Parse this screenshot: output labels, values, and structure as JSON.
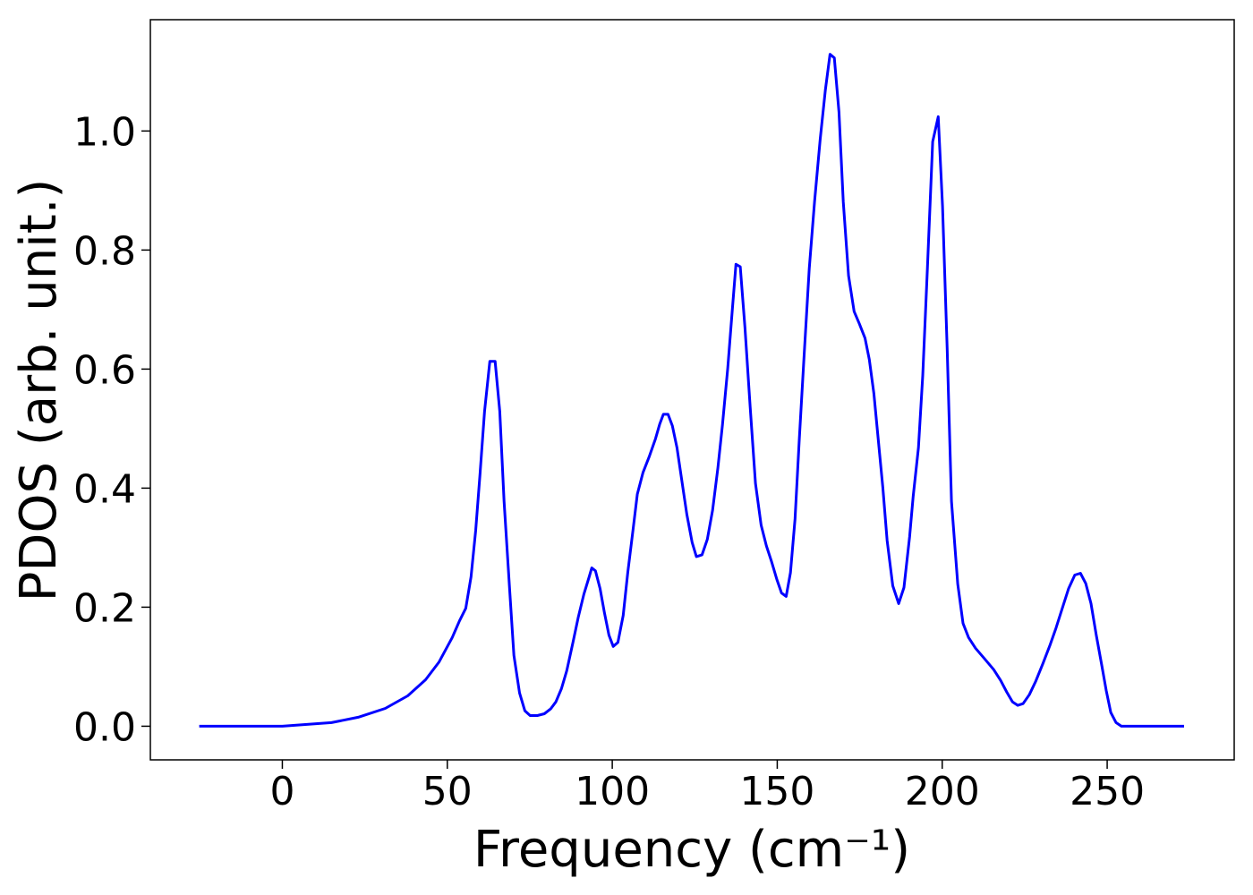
{
  "chart_data": {
    "type": "line",
    "xlabel": "Frequency (cm⁻¹)",
    "ylabel": "PDOS (arb. unit.)",
    "xlim": [
      -40,
      288.5
    ],
    "ylim": [
      -0.0565,
      1.187
    ],
    "xticks": [
      0,
      50,
      100,
      150,
      200,
      250
    ],
    "yticks": [
      {
        "value": 0,
        "label": "0.0"
      },
      0.2,
      0.4,
      0.6,
      0.8,
      {
        "value": 1,
        "label": "1.0"
      }
    ],
    "grid": false,
    "series": [
      {
        "color": "#0000ff",
        "x": [
          -25.2,
          0,
          14.9,
          23,
          31.2,
          38,
          43.4,
          47.5,
          51.5,
          53.7,
          55.6,
          57.2,
          58.6,
          59.9,
          61.3,
          62.9,
          64.5,
          65.9,
          67.2,
          68.9,
          70.2,
          71.9,
          73.5,
          75.1,
          77.3,
          79.4,
          81.3,
          82.9,
          84.6,
          86.2,
          88.1,
          89.7,
          91.4,
          93.0,
          93.8,
          94.9,
          96.3,
          97.6,
          99.0,
          100.3,
          101.7,
          103.3,
          104.7,
          106.3,
          107.6,
          109.3,
          111.2,
          113.1,
          114.4,
          115.5,
          116.9,
          118.2,
          119.6,
          121.0,
          122.6,
          124.2,
          125.5,
          127.2,
          128.8,
          130.4,
          132.0,
          133.4,
          135.0,
          136.4,
          137.5,
          138.8,
          140.2,
          141.8,
          143.4,
          145.1,
          146.7,
          148.3,
          149.9,
          151.3,
          152.7,
          154.0,
          155.4,
          156.7,
          158.1,
          159.7,
          161.3,
          163.0,
          164.6,
          166.0,
          167.3,
          168.7,
          170.0,
          171.6,
          173.3,
          174.9,
          176.6,
          177.9,
          179.3,
          180.6,
          182.0,
          183.3,
          185.0,
          186.8,
          188.4,
          190.1,
          191.2,
          192.8,
          194.1,
          195.5,
          197.1,
          198.8,
          200.1,
          201.5,
          202.8,
          204.7,
          206.3,
          208.0,
          210.1,
          212.9,
          215.6,
          217.7,
          219.6,
          221.3,
          222.9,
          224.5,
          226.4,
          228.3,
          230.5,
          232.6,
          234.5,
          236.4,
          238.3,
          240.2,
          241.9,
          243.5,
          245.1,
          246.7,
          248.4,
          249.7,
          251.1,
          252.7,
          254.3,
          273.3
        ],
        "values": [
          0,
          0,
          0.006,
          0.015,
          0.03,
          0.051,
          0.078,
          0.108,
          0.149,
          0.177,
          0.198,
          0.251,
          0.329,
          0.423,
          0.529,
          0.613,
          0.613,
          0.529,
          0.378,
          0.228,
          0.119,
          0.056,
          0.026,
          0.018,
          0.018,
          0.021,
          0.029,
          0.041,
          0.063,
          0.093,
          0.141,
          0.183,
          0.222,
          0.251,
          0.266,
          0.261,
          0.231,
          0.191,
          0.153,
          0.134,
          0.141,
          0.186,
          0.258,
          0.33,
          0.39,
          0.426,
          0.453,
          0.483,
          0.508,
          0.524,
          0.524,
          0.505,
          0.468,
          0.416,
          0.356,
          0.309,
          0.285,
          0.288,
          0.314,
          0.363,
          0.434,
          0.506,
          0.601,
          0.701,
          0.776,
          0.772,
          0.671,
          0.536,
          0.408,
          0.338,
          0.303,
          0.276,
          0.246,
          0.224,
          0.218,
          0.258,
          0.348,
          0.483,
          0.619,
          0.769,
          0.881,
          0.986,
          1.069,
          1.129,
          1.123,
          1.032,
          0.881,
          0.757,
          0.697,
          0.676,
          0.652,
          0.616,
          0.559,
          0.483,
          0.401,
          0.312,
          0.236,
          0.206,
          0.233,
          0.318,
          0.386,
          0.468,
          0.589,
          0.769,
          0.982,
          1.024,
          0.874,
          0.634,
          0.378,
          0.239,
          0.173,
          0.149,
          0.131,
          0.113,
          0.095,
          0.077,
          0.057,
          0.041,
          0.035,
          0.038,
          0.053,
          0.075,
          0.105,
          0.135,
          0.165,
          0.198,
          0.231,
          0.254,
          0.257,
          0.24,
          0.206,
          0.153,
          0.101,
          0.06,
          0.023,
          0.006,
          0,
          0
        ]
      }
    ]
  }
}
